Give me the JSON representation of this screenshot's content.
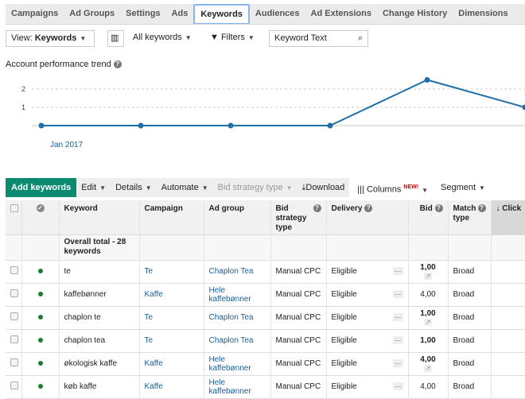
{
  "tabs": [
    "Campaigns",
    "Ad Groups",
    "Settings",
    "Ads",
    "Keywords",
    "Audiences",
    "Ad Extensions",
    "Change History",
    "Dimensions"
  ],
  "active_tab": "Keywords",
  "toolbar": {
    "view_prefix": "View: ",
    "view_value": "Keywords",
    "all_keywords": "All keywords",
    "filters": "Filters",
    "search_value": "Keyword Text"
  },
  "chart_title": "Account performance trend",
  "chart_data": {
    "type": "line",
    "x_tick_labels": [
      "Jan 2017"
    ],
    "y_ticks": [
      1,
      2
    ],
    "grid": true,
    "series": [
      {
        "values": [
          0,
          0,
          0,
          0,
          2.5,
          1
        ]
      }
    ],
    "color": "#1f6fa8"
  },
  "actions": {
    "add": "Add keywords",
    "edit": "Edit",
    "details": "Details",
    "automate": "Automate",
    "bid_strategy": "Bid strategy type",
    "download": "Download",
    "columns": "Columns",
    "new_badge": "NEW!",
    "segment": "Segment"
  },
  "columns": [
    "Keyword",
    "Campaign",
    "Ad group",
    "Bid strategy type",
    "Delivery",
    "Bid",
    "Match type",
    "Click"
  ],
  "total": "Overall total - 28 keywords",
  "rows": [
    {
      "keyword": "te",
      "campaign": "Te",
      "ad_group": "Chaplon Tea",
      "strategy": "Manual CPC",
      "delivery": "Eligible",
      "bid": "1,00",
      "bid_bold": true,
      "trend": true,
      "match": "Broad"
    },
    {
      "keyword": "kaffebønner",
      "campaign": "Kaffe",
      "ad_group": "Hele kaffebønner",
      "strategy": "Manual CPC",
      "delivery": "Eligible",
      "bid": "4,00",
      "bid_bold": false,
      "trend": false,
      "match": "Broad"
    },
    {
      "keyword": "chaplon te",
      "campaign": "Te",
      "ad_group": "Chaplon Tea",
      "strategy": "Manual CPC",
      "delivery": "Eligible",
      "bid": "1,00",
      "bid_bold": true,
      "trend": true,
      "match": "Broad"
    },
    {
      "keyword": "chaplon tea",
      "campaign": "Te",
      "ad_group": "Chaplon Tea",
      "strategy": "Manual CPC",
      "delivery": "Eligible",
      "bid": "1,00",
      "bid_bold": true,
      "trend": false,
      "match": "Broad"
    },
    {
      "keyword": "økologisk kaffe",
      "campaign": "Kaffe",
      "ad_group": "Hele kaffebønner",
      "strategy": "Manual CPC",
      "delivery": "Eligible",
      "bid": "4,00",
      "bid_bold": true,
      "trend": true,
      "match": "Broad"
    },
    {
      "keyword": "køb kaffe",
      "campaign": "Kaffe",
      "ad_group": "Hele kaffebønner",
      "strategy": "Manual CPC",
      "delivery": "Eligible",
      "bid": "4,00",
      "bid_bold": false,
      "trend": false,
      "match": "Broad"
    }
  ]
}
